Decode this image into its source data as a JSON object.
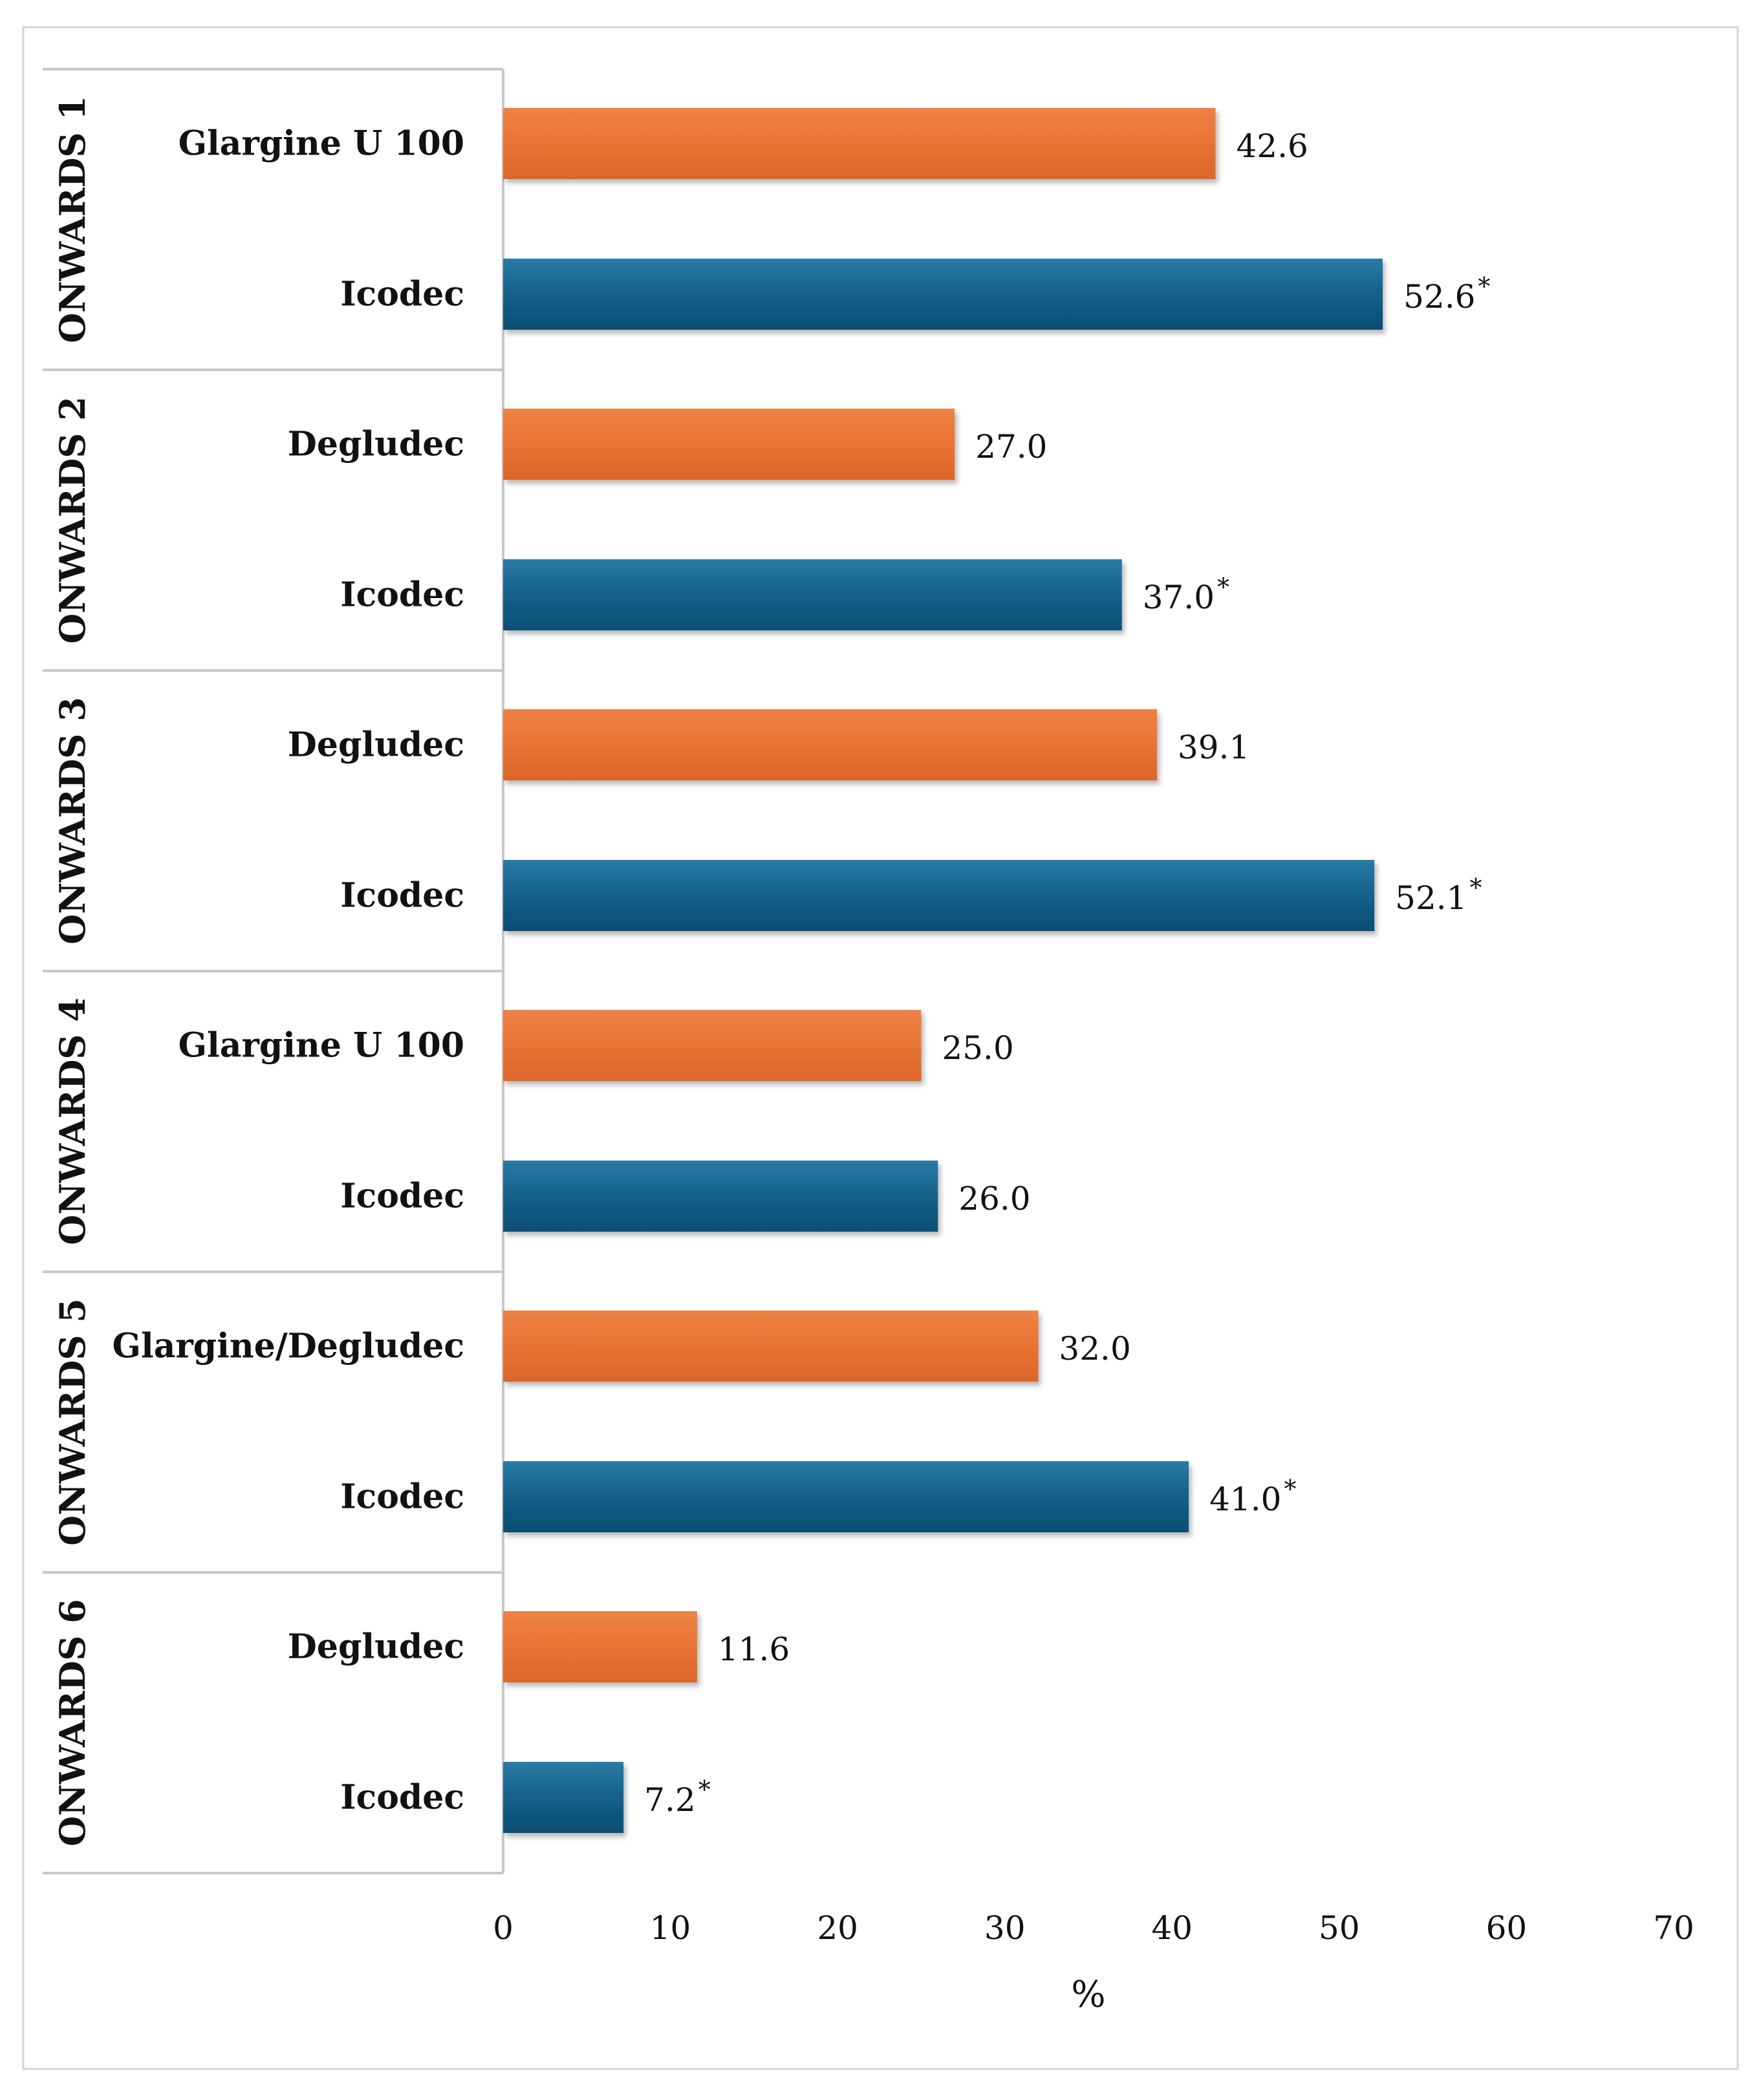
{
  "chart_data": {
    "type": "bar",
    "orientation": "horizontal",
    "xlabel": "%",
    "xlim": [
      0,
      70
    ],
    "xticks": [
      "0",
      "10",
      "20",
      "30",
      "40",
      "50",
      "60",
      "70"
    ],
    "grid": false,
    "legend": "none",
    "colors": {
      "comparator": "#E87334",
      "icodec": "#13608A"
    },
    "groups": [
      {
        "name": "ONWARDS 1",
        "bars": [
          {
            "label": "Glargine U 100",
            "value": 42.6,
            "value_label": "42.6",
            "significant": false,
            "kind": "comparator"
          },
          {
            "label": "Icodec",
            "value": 52.6,
            "value_label": "52.6",
            "significant": true,
            "kind": "icodec"
          }
        ]
      },
      {
        "name": "ONWARDS 2",
        "bars": [
          {
            "label": "Degludec",
            "value": 27.0,
            "value_label": "27.0",
            "significant": false,
            "kind": "comparator"
          },
          {
            "label": "Icodec",
            "value": 37.0,
            "value_label": "37.0",
            "significant": true,
            "kind": "icodec"
          }
        ]
      },
      {
        "name": "ONWARDS 3",
        "bars": [
          {
            "label": "Degludec",
            "value": 39.1,
            "value_label": "39.1",
            "significant": false,
            "kind": "comparator"
          },
          {
            "label": "Icodec",
            "value": 52.1,
            "value_label": "52.1",
            "significant": true,
            "kind": "icodec"
          }
        ]
      },
      {
        "name": "ONWARDS 4",
        "bars": [
          {
            "label": "Glargine U 100",
            "value": 25.0,
            "value_label": "25.0",
            "significant": false,
            "kind": "comparator"
          },
          {
            "label": "Icodec",
            "value": 26.0,
            "value_label": "26.0",
            "significant": false,
            "kind": "icodec"
          }
        ]
      },
      {
        "name": "ONWARDS 5",
        "bars": [
          {
            "label": "Glargine/Degludec",
            "value": 32.0,
            "value_label": "32.0",
            "significant": false,
            "kind": "comparator"
          },
          {
            "label": "Icodec",
            "value": 41.0,
            "value_label": "41.0",
            "significant": true,
            "kind": "icodec"
          }
        ]
      },
      {
        "name": "ONWARDS 6",
        "bars": [
          {
            "label": "Degludec",
            "value": 11.6,
            "value_label": "11.6",
            "significant": false,
            "kind": "comparator"
          },
          {
            "label": "Icodec",
            "value": 7.2,
            "value_label": "7.2",
            "significant": true,
            "kind": "icodec"
          }
        ]
      }
    ],
    "significance_marker": "*"
  }
}
